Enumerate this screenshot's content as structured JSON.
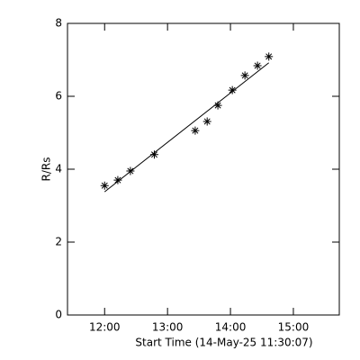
{
  "chart_data": {
    "type": "scatter",
    "xlabel": "Start Time (14-May-25 11:30:07)",
    "ylabel": "R/Rs",
    "xlim": [
      11.41,
      15.73
    ],
    "ylim": [
      0,
      8
    ],
    "xticks": [
      {
        "value": 12,
        "label": "12:00"
      },
      {
        "value": 13,
        "label": "13:00"
      },
      {
        "value": 14,
        "label": "14:00"
      },
      {
        "value": 15,
        "label": "15:00"
      }
    ],
    "yticks": [
      0,
      2,
      4,
      6,
      8
    ],
    "grid": false,
    "series": [
      {
        "mode": "markers",
        "color": "#000000",
        "x": [
          12.0,
          12.21,
          12.41,
          12.79,
          13.44,
          13.63,
          13.8,
          14.03,
          14.23,
          14.43,
          14.61
        ],
        "values": [
          3.55,
          3.7,
          3.95,
          4.4,
          5.06,
          5.31,
          5.75,
          6.17,
          6.57,
          6.84,
          7.09
        ]
      },
      {
        "mode": "line",
        "color": "#000000",
        "x": [
          12.0,
          14.61
        ],
        "values": [
          3.38,
          6.92
        ]
      }
    ]
  }
}
